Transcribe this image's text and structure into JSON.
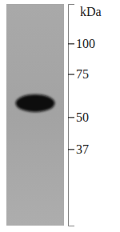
{
  "chart_data": {
    "type": "blot",
    "y_label": "kDa",
    "categories": [
      null
    ],
    "values": [
      57
    ],
    "ylim": [
      145,
      18
    ],
    "yticks": [
      100,
      75,
      50,
      37
    ],
    "log": "y"
  }
}
